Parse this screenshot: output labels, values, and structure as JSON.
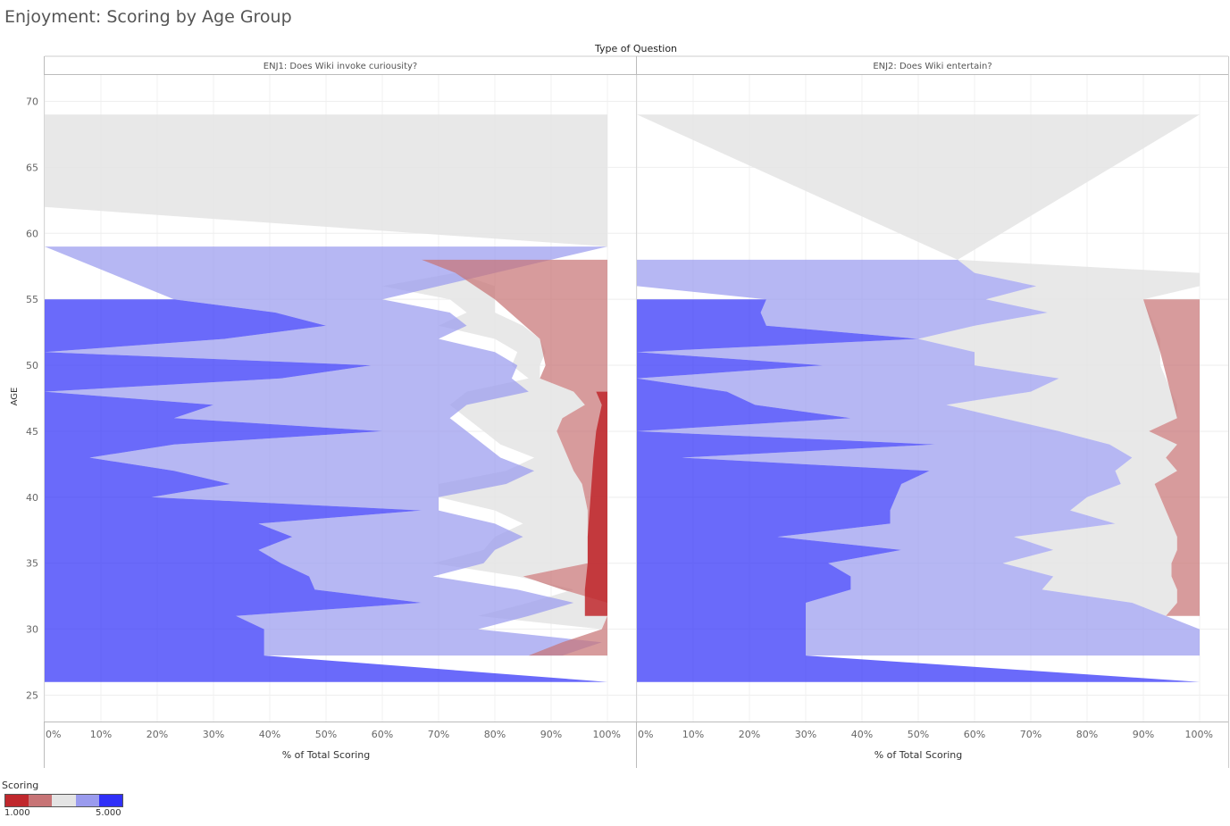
{
  "title": "Enjoyment: Scoring by Age Group",
  "colors": {
    "1": "#c0282d",
    "2": "#c77476",
    "3": "#e4e4e4",
    "4": "#9a9bee",
    "5": "#3030f8"
  },
  "chart_data": {
    "type": "area",
    "column_header": "Type of Question",
    "xlabel": "% of Total Scoring",
    "ylabel": "AGE",
    "xlim": [
      0,
      100
    ],
    "ylim": [
      23,
      72
    ],
    "x_ticks": [
      "0%",
      "10%",
      "20%",
      "30%",
      "40%",
      "50%",
      "60%",
      "70%",
      "80%",
      "90%",
      "100%"
    ],
    "y_ticks": [
      25,
      30,
      35,
      40,
      45,
      50,
      55,
      60,
      65,
      70
    ],
    "legend": {
      "title": "Scoring",
      "min_label": "1.000",
      "max_label": "5.000"
    },
    "panels": [
      {
        "name": "ENJ1: Does Wiki invoke curiousity?",
        "series": [
          {
            "score": 1,
            "ages": [
              48,
              47,
              45,
              43,
              40,
              37,
              35,
              33,
              31
            ],
            "cum_right": [
              100,
              100,
              100,
              100,
              100,
              100,
              100,
              100,
              100
            ],
            "cum_left": [
              98,
              99,
              98,
              97.5,
              97,
              96.5,
              96.5,
              96,
              96
            ]
          },
          {
            "score": 2,
            "ages": [
              58,
              57,
              55,
              52,
              50,
              49,
              48,
              47,
              46,
              45,
              44,
              43,
              42,
              41,
              40,
              39,
              38,
              37,
              36,
              35,
              34,
              33,
              32,
              31,
              30,
              29,
              28
            ],
            "cum_right": [
              100,
              100,
              100,
              100,
              100,
              100,
              100,
              100,
              100,
              100,
              100,
              100,
              100,
              100,
              100,
              100,
              100,
              100,
              100,
              100,
              100,
              100,
              100,
              100,
              100,
              100,
              100
            ],
            "cum_left": [
              67,
              73,
              80,
              88,
              89,
              88,
              94,
              96,
              92,
              91,
              92,
              93,
              94,
              95.5,
              96,
              96.5,
              96.5,
              96.5,
              96.5,
              96.5,
              85,
              92,
              100,
              100,
              99,
              92,
              86
            ]
          },
          {
            "score": 3,
            "ages": [
              69,
              62,
              59,
              58,
              57,
              56,
              55,
              54,
              53,
              52,
              51,
              50,
              49,
              48,
              47,
              46,
              45,
              44,
              43,
              42,
              41,
              40,
              39,
              38,
              37,
              36,
              35,
              34,
              33,
              32,
              31,
              30,
              29,
              28
            ],
            "cum_right": [
              100,
              100,
              100,
              67,
              73,
              80,
              80,
              80,
              85,
              88,
              89,
              88,
              88,
              94,
              96,
              92,
              91,
              92,
              93,
              94,
              95.5,
              96,
              96.5,
              96.5,
              96.5,
              96.5,
              96.5,
              85,
              92,
              100,
              100,
              99,
              92,
              86
            ],
            "cum_left": [
              0,
              0,
              100,
              67,
              73,
              60,
              72,
              75,
              70,
              80,
              84,
              83,
              86,
              75,
              72,
              75,
              78,
              81,
              87,
              82,
              70,
              70,
              80,
              85,
              80,
              78,
              69,
              84,
              94,
              86,
              77,
              99,
              92,
              86
            ]
          },
          {
            "score": 4,
            "ages": [
              59,
              55,
              54,
              53,
              52,
              51,
              50,
              49,
              48,
              47,
              46,
              45,
              44,
              43,
              42,
              41,
              40,
              39,
              38,
              37,
              36,
              35,
              34,
              33,
              32,
              31,
              30,
              29,
              28
            ],
            "cum_right": [
              100,
              60,
              72,
              75,
              70,
              80,
              84,
              83,
              86,
              75,
              72,
              75,
              78,
              81,
              87,
              82,
              70,
              70,
              80,
              85,
              80,
              78,
              69,
              84,
              94,
              86,
              77,
              99,
              92
            ],
            "cum_left": [
              0,
              23,
              41,
              50,
              32,
              0,
              58,
              42,
              0,
              30,
              23,
              60,
              23,
              8,
              23,
              33,
              19,
              67,
              38,
              44,
              38,
              42,
              47,
              48,
              67,
              34,
              39,
              39,
              39
            ]
          },
          {
            "score": 5,
            "ages": [
              55,
              54,
              53,
              52,
              51,
              50,
              49,
              48,
              47,
              46,
              45,
              44,
              43,
              42,
              41,
              40,
              39,
              38,
              37,
              36,
              35,
              34,
              33,
              32,
              31,
              30,
              29,
              28,
              26
            ],
            "cum_right": [
              23,
              41,
              50,
              32,
              0,
              58,
              42,
              0,
              30,
              23,
              60,
              23,
              8,
              23,
              33,
              19,
              67,
              38,
              44,
              38,
              42,
              47,
              48,
              67,
              34,
              39,
              39,
              39,
              100
            ],
            "cum_left": [
              0,
              0,
              0,
              0,
              0,
              0,
              0,
              0,
              0,
              0,
              0,
              0,
              0,
              0,
              0,
              0,
              0,
              0,
              0,
              0,
              0,
              0,
              0,
              0,
              0,
              0,
              0,
              0,
              0
            ]
          }
        ]
      },
      {
        "name": "ENJ2: Does Wiki entertain?",
        "series": [
          {
            "score": 2,
            "ages": [
              55,
              51,
              46,
              45,
              44,
              43,
              42,
              41,
              40,
              39,
              38,
              37,
              36,
              35,
              34,
              33,
              32,
              31
            ],
            "cum_right": [
              100,
              100,
              100,
              100,
              100,
              100,
              100,
              100,
              100,
              100,
              100,
              100,
              100,
              100,
              100,
              100,
              100,
              100
            ],
            "cum_left": [
              90,
              93,
              96,
              91,
              96,
              94,
              96,
              92,
              93,
              94,
              95,
              96,
              96,
              95,
              95,
              96,
              96,
              94
            ]
          },
          {
            "score": 3,
            "ages": [
              69,
              58,
              57,
              56,
              55,
              54,
              53,
              52,
              51,
              50,
              49,
              48,
              47,
              46,
              45,
              44,
              43,
              42,
              41,
              40,
              39,
              38,
              37,
              36,
              35,
              34,
              33,
              32,
              31,
              30
            ],
            "cum_right": [
              100,
              57,
              100,
              100,
              90,
              91,
              92,
              93,
              93,
              93,
              94,
              95,
              96,
              96,
              91,
              96,
              94,
              96,
              92,
              93,
              94,
              95,
              96,
              96,
              95,
              95,
              96,
              96,
              94,
              100
            ],
            "cum_left": [
              0,
              57,
              60,
              71,
              62,
              73,
              60,
              50,
              60,
              60,
              75,
              70,
              55,
              65,
              75,
              84,
              88,
              85,
              86,
              80,
              77,
              85,
              67,
              74,
              65,
              74,
              72,
              88,
              94,
              100
            ]
          },
          {
            "score": 4,
            "ages": [
              58,
              57,
              56,
              55,
              54,
              53,
              52,
              51,
              50,
              49,
              48,
              47,
              46,
              45,
              44,
              43,
              42,
              41,
              40,
              39,
              38,
              37,
              36,
              35,
              34,
              33,
              32,
              31,
              30,
              29,
              28
            ],
            "cum_right": [
              57,
              60,
              71,
              62,
              73,
              60,
              50,
              60,
              60,
              75,
              70,
              55,
              65,
              75,
              84,
              88,
              85,
              86,
              80,
              77,
              85,
              67,
              74,
              65,
              74,
              72,
              88,
              94,
              100,
              100,
              100
            ],
            "cum_left": [
              0,
              0,
              0,
              23,
              22,
              23,
              50,
              0,
              33,
              0,
              16,
              21,
              38,
              0,
              53,
              8,
              52,
              47,
              46,
              45,
              45,
              25,
              47,
              34,
              38,
              38,
              30,
              30,
              30,
              30,
              30
            ]
          },
          {
            "score": 5,
            "ages": [
              55,
              54,
              53,
              52,
              51,
              50,
              49,
              48,
              47,
              46,
              45,
              44,
              43,
              42,
              41,
              40,
              39,
              38,
              37,
              36,
              35,
              34,
              33,
              32,
              31,
              30,
              29,
              28,
              26
            ],
            "cum_right": [
              23,
              22,
              23,
              50,
              0,
              33,
              0,
              16,
              21,
              38,
              0,
              53,
              8,
              52,
              47,
              46,
              45,
              45,
              25,
              47,
              34,
              38,
              38,
              30,
              30,
              30,
              30,
              30,
              100
            ],
            "cum_left": [
              0,
              0,
              0,
              0,
              0,
              0,
              0,
              0,
              0,
              0,
              0,
              0,
              0,
              0,
              0,
              0,
              0,
              0,
              0,
              0,
              0,
              0,
              0,
              0,
              0,
              0,
              0,
              0,
              0
            ]
          }
        ]
      }
    ]
  }
}
